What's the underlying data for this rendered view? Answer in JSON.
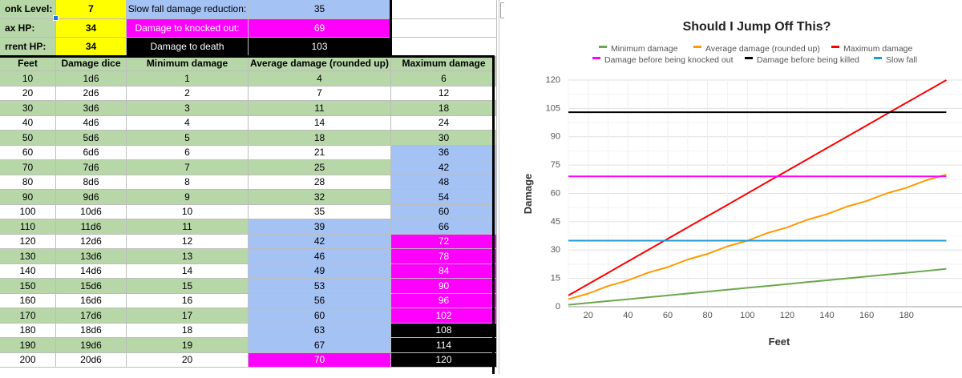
{
  "info_rows": [
    {
      "label": "onk Level:",
      "value": "7",
      "label2": "Slow fall damage reduction:",
      "value2": "35",
      "label2_class": "blue",
      "value2_class": "blue"
    },
    {
      "label": "ax HP:",
      "value": "34",
      "label2": "Damage to knocked out:",
      "value2": "69",
      "label2_class": "pink",
      "value2_class": "pink"
    },
    {
      "label": "rrent HP:",
      "value": "34",
      "label2": "Damage to death",
      "value2": "103",
      "label2_class": "black",
      "value2_class": "black"
    }
  ],
  "table": {
    "headers": [
      "Feet",
      "Damage dice",
      "Minimum damage",
      "Average damage (rounded up)",
      "Maximum damage"
    ],
    "rows": [
      {
        "feet": "10",
        "dice": "1d6",
        "min": "1",
        "avg": "4",
        "max": "6",
        "avg_c": "green",
        "max_c": "green"
      },
      {
        "feet": "20",
        "dice": "2d6",
        "min": "2",
        "avg": "7",
        "max": "12",
        "avg_c": "white",
        "max_c": "white"
      },
      {
        "feet": "30",
        "dice": "3d6",
        "min": "3",
        "avg": "11",
        "max": "18",
        "avg_c": "green",
        "max_c": "green"
      },
      {
        "feet": "40",
        "dice": "4d6",
        "min": "4",
        "avg": "14",
        "max": "24",
        "avg_c": "white",
        "max_c": "white"
      },
      {
        "feet": "50",
        "dice": "5d6",
        "min": "5",
        "avg": "18",
        "max": "30",
        "avg_c": "green",
        "max_c": "green"
      },
      {
        "feet": "60",
        "dice": "6d6",
        "min": "6",
        "avg": "21",
        "max": "36",
        "avg_c": "white",
        "max_c": "blue"
      },
      {
        "feet": "70",
        "dice": "7d6",
        "min": "7",
        "avg": "25",
        "max": "42",
        "avg_c": "green",
        "max_c": "blue"
      },
      {
        "feet": "80",
        "dice": "8d6",
        "min": "8",
        "avg": "28",
        "max": "48",
        "avg_c": "white",
        "max_c": "blue"
      },
      {
        "feet": "90",
        "dice": "9d6",
        "min": "9",
        "avg": "32",
        "max": "54",
        "avg_c": "green",
        "max_c": "blue"
      },
      {
        "feet": "100",
        "dice": "10d6",
        "min": "10",
        "avg": "35",
        "max": "60",
        "avg_c": "white",
        "max_c": "blue"
      },
      {
        "feet": "110",
        "dice": "11d6",
        "min": "11",
        "avg": "39",
        "max": "66",
        "avg_c": "blue",
        "max_c": "blue"
      },
      {
        "feet": "120",
        "dice": "12d6",
        "min": "12",
        "avg": "42",
        "max": "72",
        "avg_c": "blue",
        "max_c": "pink"
      },
      {
        "feet": "130",
        "dice": "13d6",
        "min": "13",
        "avg": "46",
        "max": "78",
        "avg_c": "blue",
        "max_c": "pink"
      },
      {
        "feet": "140",
        "dice": "14d6",
        "min": "14",
        "avg": "49",
        "max": "84",
        "avg_c": "blue",
        "max_c": "pink"
      },
      {
        "feet": "150",
        "dice": "15d6",
        "min": "15",
        "avg": "53",
        "max": "90",
        "avg_c": "blue",
        "max_c": "pink"
      },
      {
        "feet": "160",
        "dice": "16d6",
        "min": "16",
        "avg": "56",
        "max": "96",
        "avg_c": "blue",
        "max_c": "pink"
      },
      {
        "feet": "170",
        "dice": "17d6",
        "min": "17",
        "avg": "60",
        "max": "102",
        "avg_c": "blue",
        "max_c": "pink"
      },
      {
        "feet": "180",
        "dice": "18d6",
        "min": "18",
        "avg": "63",
        "max": "108",
        "avg_c": "blue",
        "max_c": "black"
      },
      {
        "feet": "190",
        "dice": "19d6",
        "min": "19",
        "avg": "67",
        "max": "114",
        "avg_c": "blue",
        "max_c": "black"
      },
      {
        "feet": "200",
        "dice": "20d6",
        "min": "20",
        "avg": "70",
        "max": "120",
        "avg_c": "pink",
        "max_c": "black"
      }
    ]
  },
  "colors": {
    "green": "#b7d7a8",
    "blue": "#a4c2f4",
    "pink": "#ff00ff",
    "yellow": "#ffff00",
    "black": "#000000"
  },
  "chart_data": {
    "type": "line",
    "title": "Should I Jump Off This?",
    "xlabel": "Feet",
    "ylabel": "Damage",
    "x": [
      10,
      20,
      30,
      40,
      50,
      60,
      70,
      80,
      90,
      100,
      110,
      120,
      130,
      140,
      150,
      160,
      170,
      180,
      190,
      200
    ],
    "xlim": [
      10,
      200
    ],
    "x_ticks": [
      20,
      40,
      60,
      80,
      100,
      120,
      140,
      160,
      180
    ],
    "ylim": [
      0,
      120
    ],
    "y_ticks": [
      0,
      15,
      30,
      45,
      60,
      75,
      90,
      105,
      120
    ],
    "grid": true,
    "legend_position": "top",
    "series": [
      {
        "name": "Minimum damage",
        "color": "#6aa84f",
        "values": [
          1,
          2,
          3,
          4,
          5,
          6,
          7,
          8,
          9,
          10,
          11,
          12,
          13,
          14,
          15,
          16,
          17,
          18,
          19,
          20
        ]
      },
      {
        "name": "Average damage (rounded up)",
        "color": "#ff9900",
        "values": [
          4,
          7,
          11,
          14,
          18,
          21,
          25,
          28,
          32,
          35,
          39,
          42,
          46,
          49,
          53,
          56,
          60,
          63,
          67,
          70
        ]
      },
      {
        "name": "Maximum damage",
        "color": "#ff0000",
        "values": [
          6,
          12,
          18,
          24,
          30,
          36,
          42,
          48,
          54,
          60,
          66,
          72,
          78,
          84,
          90,
          96,
          102,
          108,
          114,
          120
        ]
      },
      {
        "name": "Damage before being knocked out",
        "color": "#ff00ff",
        "values": [
          69,
          69,
          69,
          69,
          69,
          69,
          69,
          69,
          69,
          69,
          69,
          69,
          69,
          69,
          69,
          69,
          69,
          69,
          69,
          69
        ]
      },
      {
        "name": "Damage before being killed",
        "color": "#000000",
        "values": [
          103,
          103,
          103,
          103,
          103,
          103,
          103,
          103,
          103,
          103,
          103,
          103,
          103,
          103,
          103,
          103,
          103,
          103,
          103,
          103
        ]
      },
      {
        "name": "Slow fall",
        "color": "#1e9ad6",
        "values": [
          35,
          35,
          35,
          35,
          35,
          35,
          35,
          35,
          35,
          35,
          35,
          35,
          35,
          35,
          35,
          35,
          35,
          35,
          35,
          35
        ]
      }
    ]
  }
}
